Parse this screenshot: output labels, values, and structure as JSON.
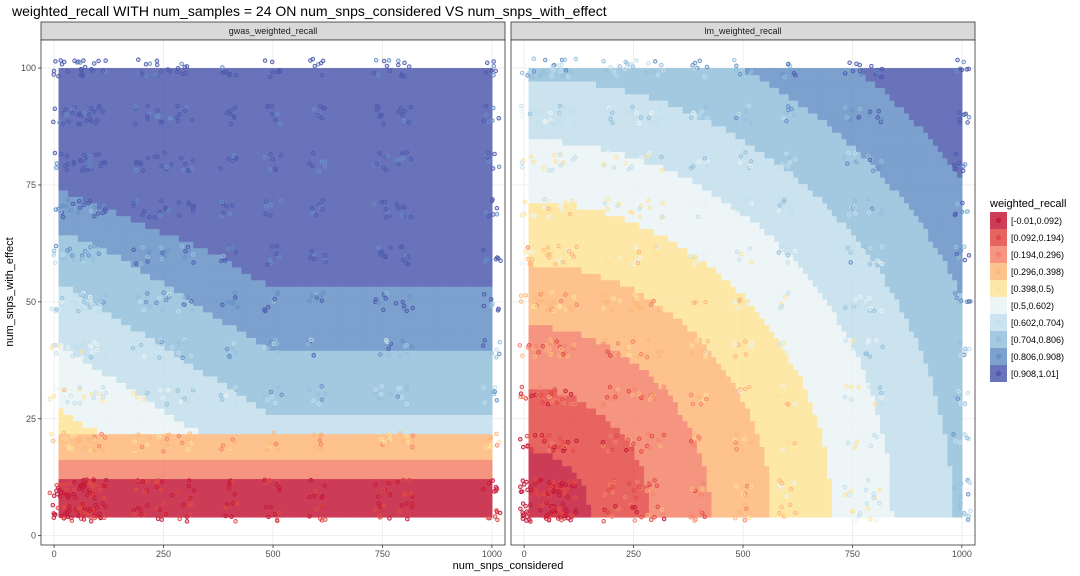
{
  "chart_data": {
    "type": "heatmap",
    "title": "weighted_recall WITH num_samples = 24 ON num_snps_considered VS num_snps_with_effect",
    "xlabel": "num_snps_considered",
    "ylabel": "num_snps_with_effect",
    "xlim": [
      -30,
      1030
    ],
    "ylim": [
      -2,
      106
    ],
    "xticks": [
      0,
      250,
      500,
      750,
      1000
    ],
    "yticks": [
      0,
      25,
      50,
      75,
      100
    ],
    "grid": true,
    "legend": {
      "title": "weighted_recall",
      "placement": "right",
      "entries": [
        "[-0.01,0.092)",
        "[0.092,0.194)",
        "[0.194,0.296)",
        "[0.296,0.398)",
        "[0.398,0.5)",
        "[0.5,0.602)",
        "[0.602,0.704)",
        "[0.704,0.806)",
        "[0.806,0.908)",
        "[0.908,1.01]"
      ],
      "colors": [
        "#c51b3a",
        "#e34a45",
        "#f4836b",
        "#fdb87a",
        "#fee49a",
        "#eaf4f5",
        "#c2dfec",
        "#94c0dc",
        "#6691c6",
        "#4f5bae"
      ]
    },
    "x_levels": [
      10,
      50,
      75,
      100,
      200,
      250,
      300,
      400,
      500,
      600,
      750,
      800,
      1000
    ],
    "y_levels": [
      5,
      10,
      20,
      30,
      40,
      50,
      60,
      70,
      80,
      90,
      100
    ],
    "panels": [
      {
        "name": "gwas_weighted_recall",
        "model": "gwas",
        "surface_x_range": [
          10,
          1000
        ],
        "surface_y_range": [
          4,
          100
        ]
      },
      {
        "name": "lm_weighted_recall",
        "model": "lm",
        "surface_x_range": [
          10,
          1000
        ],
        "surface_y_range": [
          4,
          100
        ]
      }
    ]
  }
}
